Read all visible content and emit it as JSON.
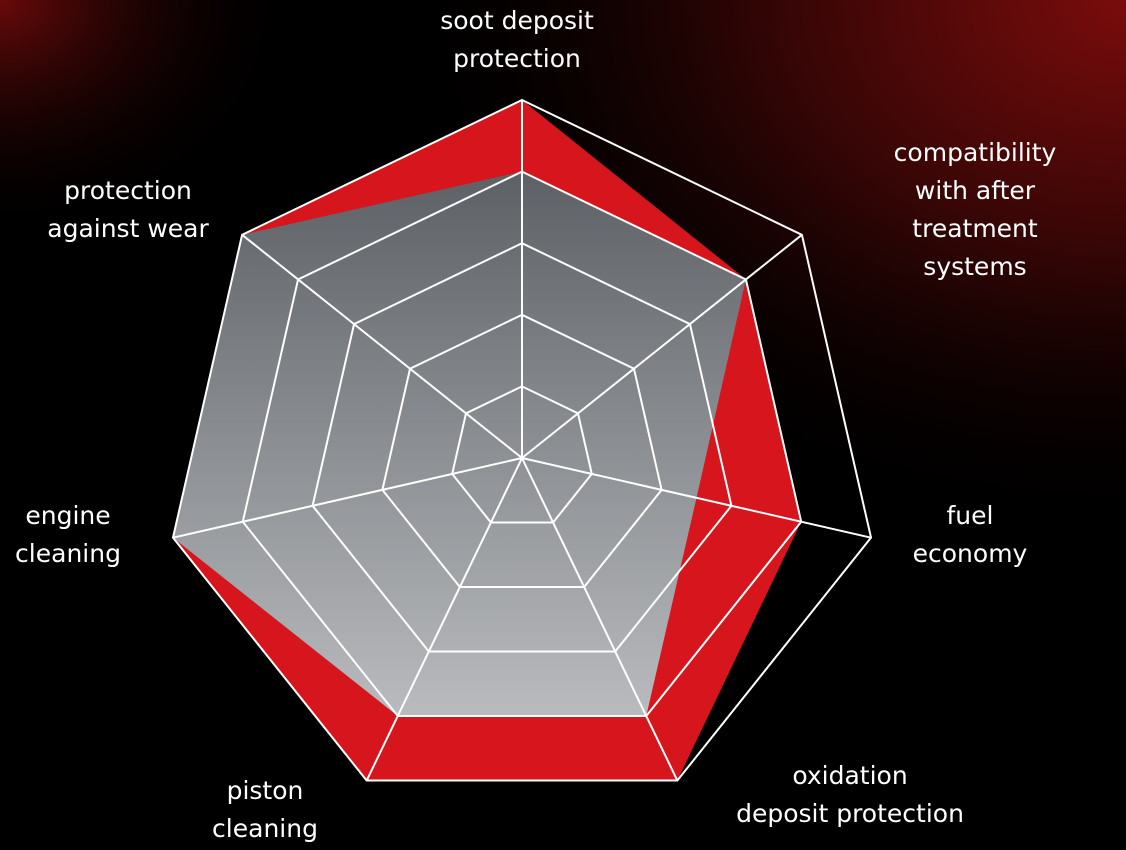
{
  "chart_data": {
    "type": "radar",
    "categories": [
      "soot deposit\nprotection",
      "compatibility\nwith after treatment\nsystems",
      "fuel\neconomy",
      "oxidation\ndeposit protection",
      "piston\ncleaning",
      "engine\ncleaning",
      "protection\nagainst wear"
    ],
    "series": [
      {
        "color": "#d7151c",
        "values": [
          5,
          4,
          4,
          5,
          5,
          5,
          5
        ]
      },
      {
        "color": "#9a9da2",
        "values": [
          4,
          4,
          2.5,
          4,
          4,
          5,
          5
        ]
      }
    ],
    "rlim": [
      0,
      5
    ],
    "rticks": [
      1,
      2,
      3,
      4,
      5
    ],
    "grid": true
  }
}
